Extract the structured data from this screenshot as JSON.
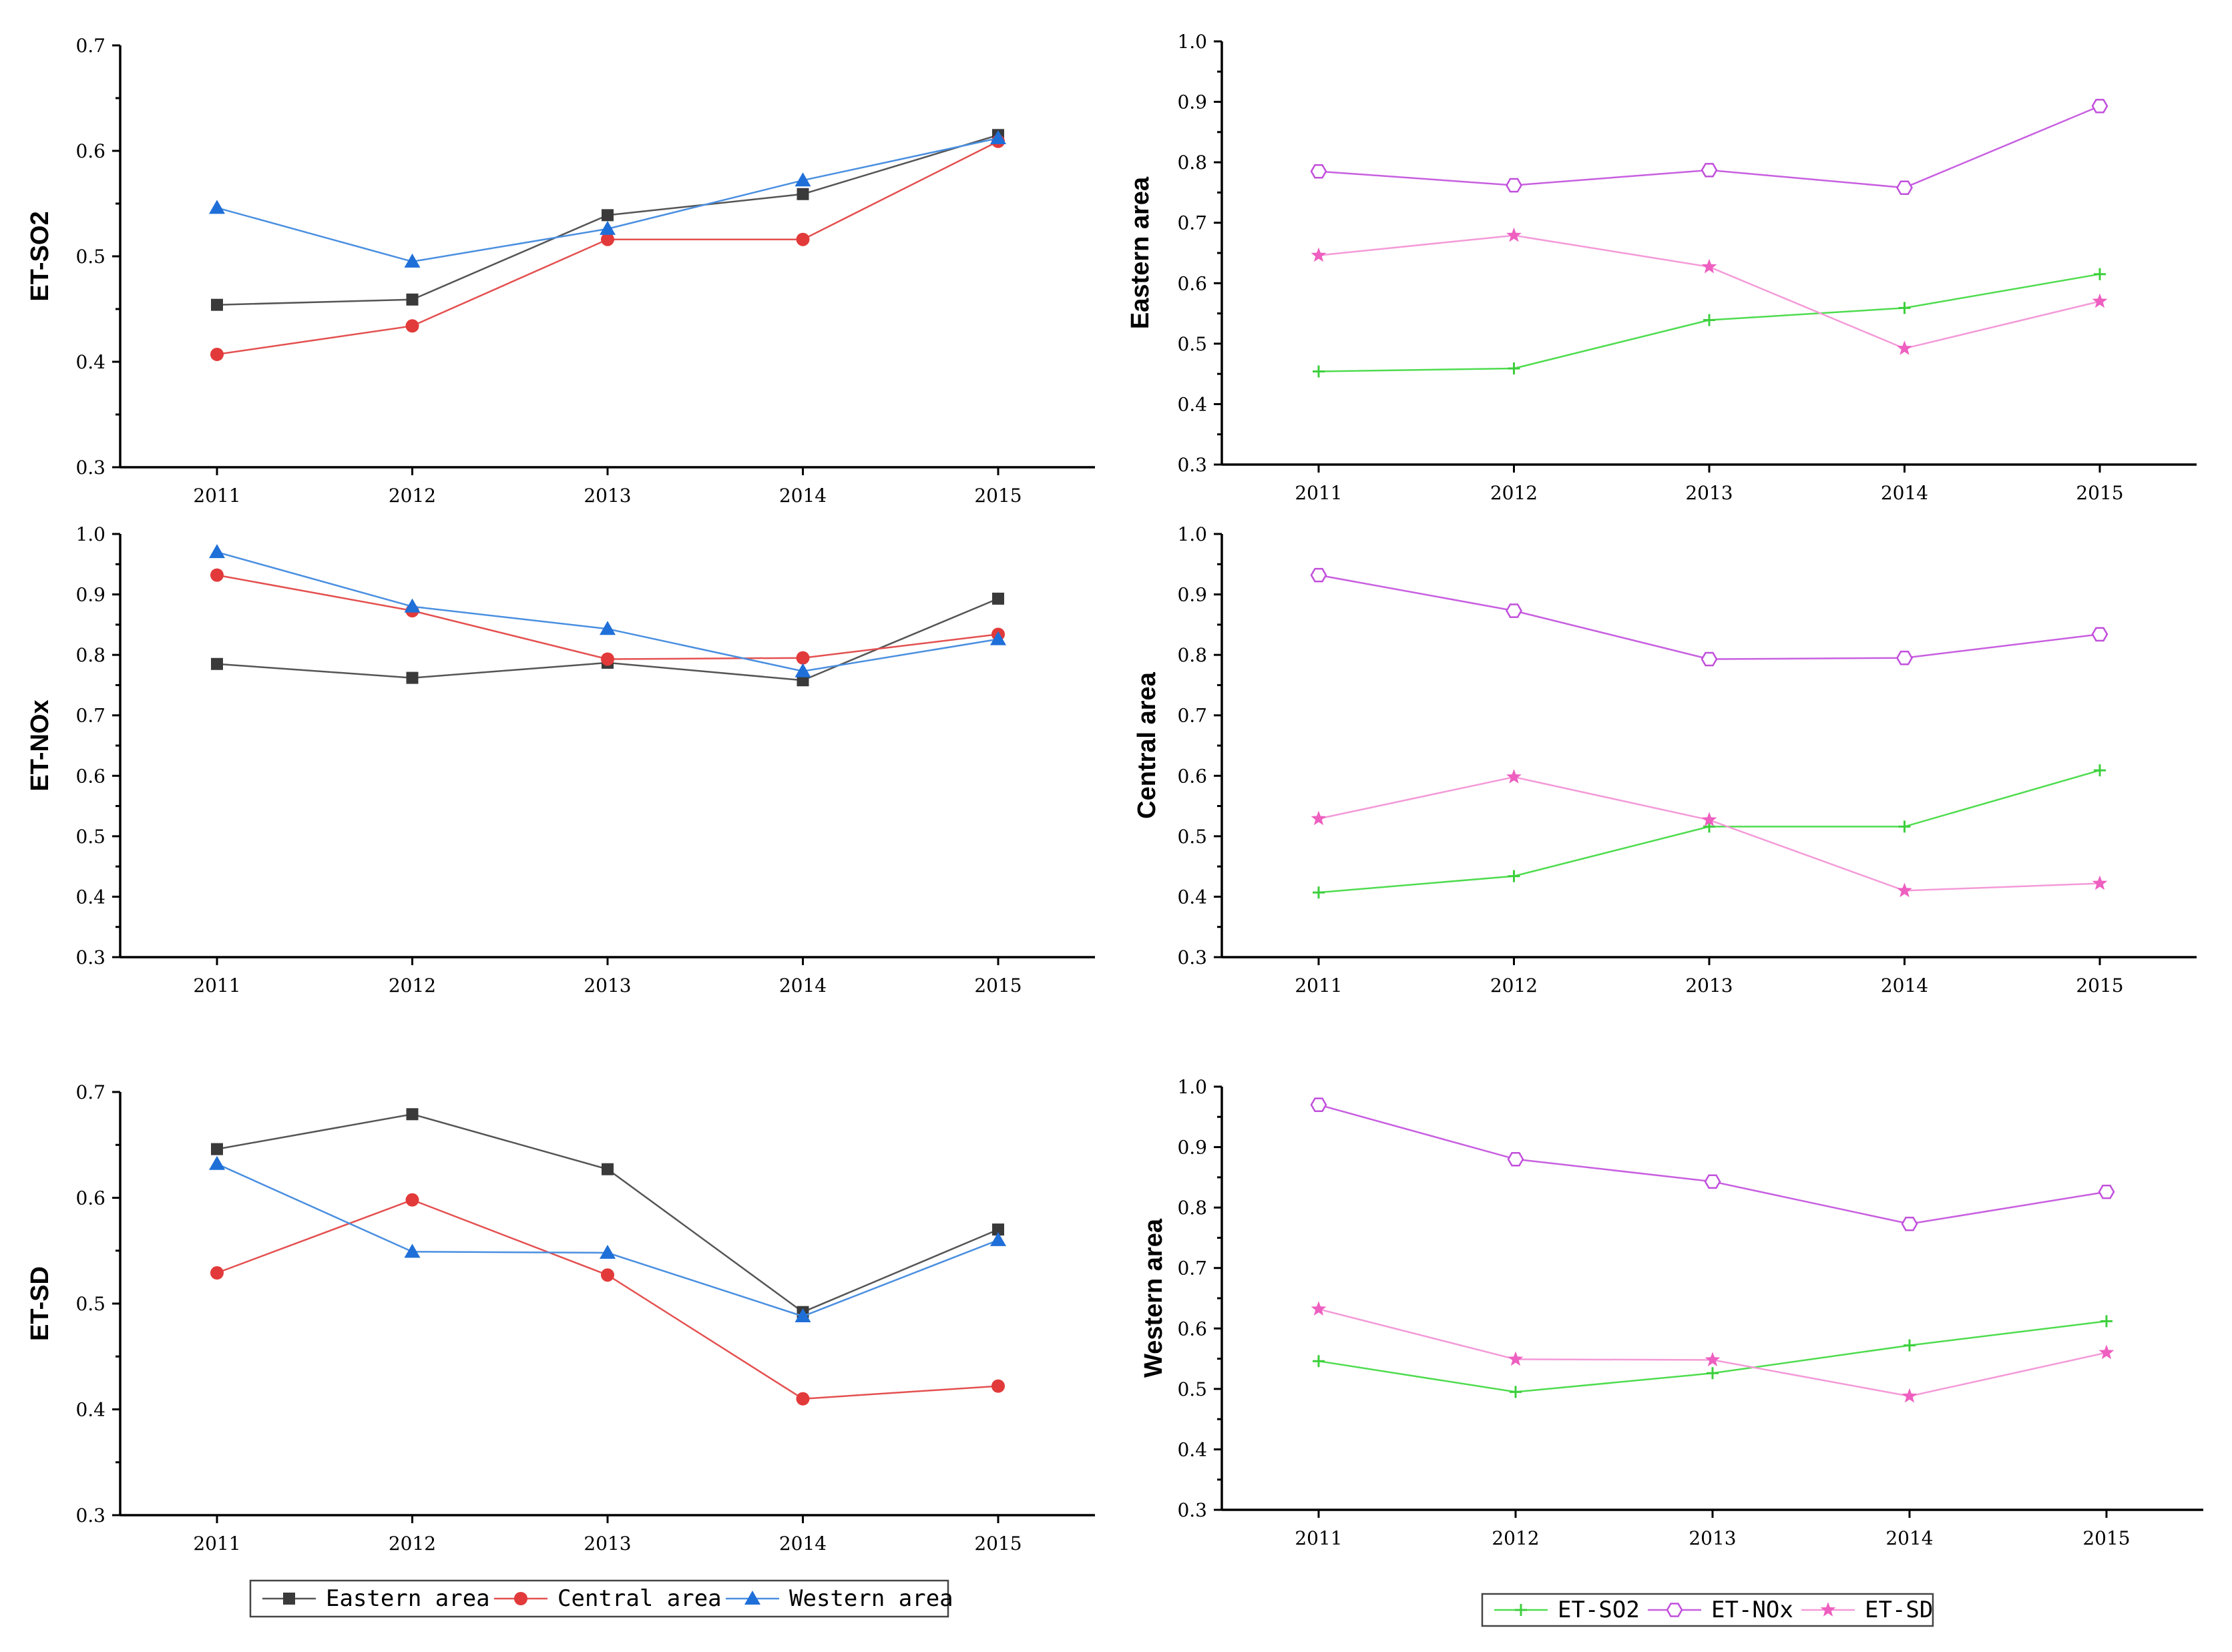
{
  "chart_data": [
    {
      "type": "line",
      "id": "panel-et-so2",
      "ylabel": "ET-SO2",
      "categories": [
        "2011",
        "2012",
        "2013",
        "2014",
        "2015"
      ],
      "ylim": [
        0.3,
        0.7
      ],
      "yticks": [
        "0.3",
        "0.4",
        "0.5",
        "0.6",
        "0.7"
      ],
      "series": [
        {
          "name": "Eastern area",
          "values": [
            0.454,
            0.459,
            0.539,
            0.559,
            0.615
          ]
        },
        {
          "name": "Central area",
          "values": [
            0.407,
            0.434,
            0.516,
            0.516,
            0.609
          ]
        },
        {
          "name": "Western area",
          "values": [
            0.546,
            0.495,
            0.526,
            0.572,
            0.612
          ]
        }
      ]
    },
    {
      "type": "line",
      "id": "panel-eastern-area",
      "ylabel": "Eastern area",
      "categories": [
        "2011",
        "2012",
        "2013",
        "2014",
        "2015"
      ],
      "ylim": [
        0.3,
        1.0
      ],
      "yticks": [
        "0.3",
        "0.4",
        "0.5",
        "0.6",
        "0.7",
        "0.8",
        "0.9",
        "1.0"
      ],
      "series": [
        {
          "name": "ET-SO2",
          "values": [
            0.454,
            0.459,
            0.539,
            0.559,
            0.615
          ]
        },
        {
          "name": "ET-NOx",
          "values": [
            0.785,
            0.762,
            0.787,
            0.758,
            0.893
          ]
        },
        {
          "name": "ET-SD",
          "values": [
            0.646,
            0.679,
            0.627,
            0.492,
            0.57
          ]
        }
      ]
    },
    {
      "type": "line",
      "id": "panel-et-nox",
      "ylabel": "ET-NOx",
      "categories": [
        "2011",
        "2012",
        "2013",
        "2014",
        "2015"
      ],
      "ylim": [
        0.3,
        1.0
      ],
      "yticks": [
        "0.3",
        "0.4",
        "0.5",
        "0.6",
        "0.7",
        "0.8",
        "0.9",
        "1.0"
      ],
      "series": [
        {
          "name": "Eastern area",
          "values": [
            0.785,
            0.762,
            0.787,
            0.758,
            0.893
          ]
        },
        {
          "name": "Central area",
          "values": [
            0.932,
            0.873,
            0.793,
            0.795,
            0.834
          ]
        },
        {
          "name": "Western area",
          "values": [
            0.97,
            0.88,
            0.843,
            0.773,
            0.826
          ]
        }
      ]
    },
    {
      "type": "line",
      "id": "panel-central-area",
      "ylabel": "Central area",
      "categories": [
        "2011",
        "2012",
        "2013",
        "2014",
        "2015"
      ],
      "ylim": [
        0.3,
        1.0
      ],
      "yticks": [
        "0.3",
        "0.4",
        "0.5",
        "0.6",
        "0.7",
        "0.8",
        "0.9",
        "1.0"
      ],
      "series": [
        {
          "name": "ET-SO2",
          "values": [
            0.407,
            0.434,
            0.516,
            0.516,
            0.609
          ]
        },
        {
          "name": "ET-NOx",
          "values": [
            0.932,
            0.873,
            0.793,
            0.795,
            0.834
          ]
        },
        {
          "name": "ET-SD",
          "values": [
            0.529,
            0.598,
            0.527,
            0.41,
            0.422
          ]
        }
      ]
    },
    {
      "type": "line",
      "id": "panel-et-sd",
      "ylabel": "ET-SD",
      "categories": [
        "2011",
        "2012",
        "2013",
        "2014",
        "2015"
      ],
      "ylim": [
        0.3,
        0.7
      ],
      "yticks": [
        "0.3",
        "0.4",
        "0.5",
        "0.6",
        "0.7"
      ],
      "series": [
        {
          "name": "Eastern area",
          "values": [
            0.646,
            0.679,
            0.627,
            0.492,
            0.57
          ]
        },
        {
          "name": "Central area",
          "values": [
            0.529,
            0.598,
            0.527,
            0.41,
            0.422
          ]
        },
        {
          "name": "Western area",
          "values": [
            0.632,
            0.549,
            0.548,
            0.488,
            0.56
          ]
        }
      ]
    },
    {
      "type": "line",
      "id": "panel-western-area",
      "ylabel": "Western area",
      "categories": [
        "2011",
        "2012",
        "2013",
        "2014",
        "2015"
      ],
      "ylim": [
        0.3,
        1.0
      ],
      "yticks": [
        "0.3",
        "0.4",
        "0.5",
        "0.6",
        "0.7",
        "0.8",
        "0.9",
        "1.0"
      ],
      "series": [
        {
          "name": "ET-SO2",
          "values": [
            0.546,
            0.495,
            0.526,
            0.572,
            0.612
          ]
        },
        {
          "name": "ET-NOx",
          "values": [
            0.97,
            0.88,
            0.843,
            0.773,
            0.826
          ]
        },
        {
          "name": "ET-SD",
          "values": [
            0.632,
            0.549,
            0.548,
            0.488,
            0.56
          ]
        }
      ]
    }
  ],
  "legends": {
    "region": [
      "Eastern area",
      "Central area",
      "Western area"
    ],
    "indicator": [
      "ET-SO2",
      "ET-NOx",
      "ET-SD"
    ]
  },
  "styles": {
    "Eastern area": {
      "color": "#555555",
      "marker_color": "#3a3a3a",
      "marker": "square"
    },
    "Central area": {
      "color": "#e45050",
      "marker_color": "#e23a3a",
      "marker": "circle"
    },
    "Western area": {
      "color": "#4a8fe0",
      "marker_color": "#1f6fd8",
      "marker": "triangle"
    },
    "ET-SO2": {
      "color": "#4fdc4f",
      "marker_color": "#3ccf3c",
      "marker": "plus"
    },
    "ET-NOx": {
      "color": "#c85fe0",
      "marker_color": "#c14fdb",
      "marker": "hexagon"
    },
    "ET-SD": {
      "color": "#f49ad8",
      "marker_color": "#ee5fc0",
      "marker": "star"
    }
  }
}
